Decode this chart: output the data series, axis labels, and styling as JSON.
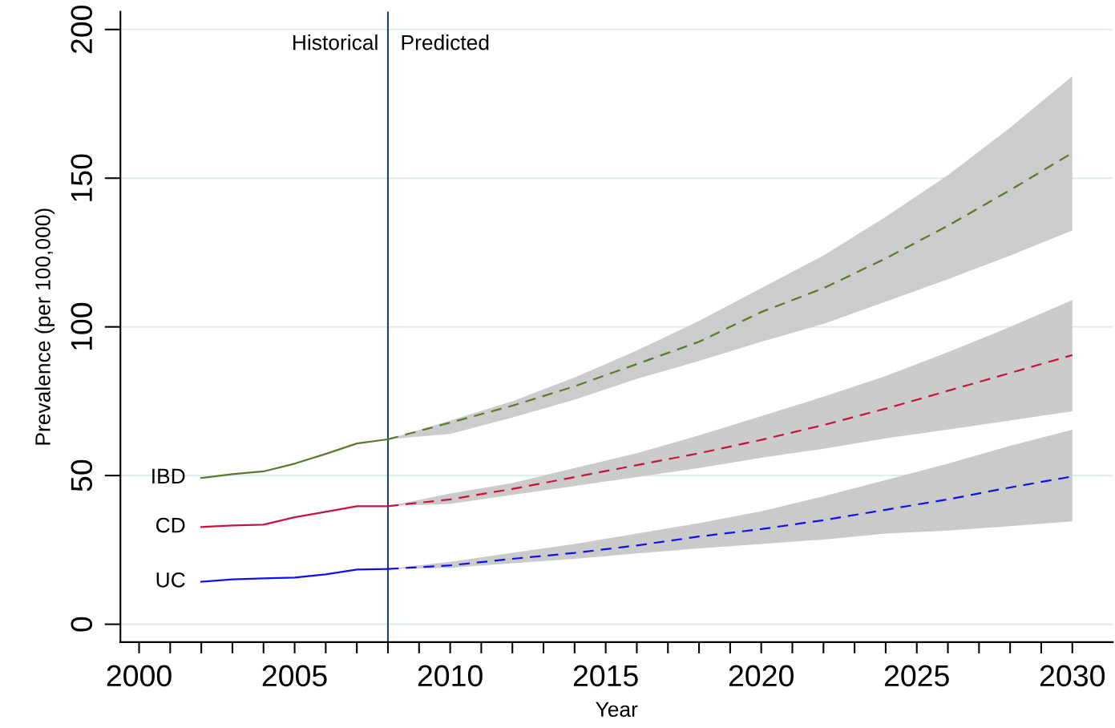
{
  "chart_data": {
    "type": "line",
    "xlabel": "Year",
    "ylabel": "Prevalence (per 100,000)",
    "series": [
      {
        "name": "IBD",
        "color": "#5a7a2b",
        "line_style": "solid",
        "x": [
          2002,
          2003,
          2004,
          2005,
          2006,
          2007,
          2008
        ],
        "values": [
          49.2,
          50.5,
          51.4,
          54,
          57.3,
          60.8,
          62.2
        ]
      },
      {
        "color": "#5a7a2b",
        "line_style": "dashed",
        "x": [
          2008,
          2010,
          2012,
          2014,
          2016,
          2018,
          2020,
          2022,
          2024,
          2026,
          2028,
          2030
        ],
        "values": [
          62.2,
          67.8,
          73.5,
          80,
          87.5,
          95,
          105,
          113,
          123,
          134,
          146,
          158.5
        ],
        "lower": [
          62.2,
          64,
          69.5,
          75.5,
          82.5,
          88.5,
          95,
          101,
          108.5,
          116,
          124,
          132.4
        ],
        "upper": [
          62.2,
          68.5,
          75,
          83,
          92,
          102,
          113,
          124,
          137,
          151,
          167,
          184.3
        ]
      },
      {
        "name": "CD",
        "color": "#c8143c",
        "line_style": "solid",
        "x": [
          2002,
          2003,
          2004,
          2005,
          2006,
          2007,
          2008
        ],
        "values": [
          32.7,
          33.2,
          33.5,
          36,
          37.8,
          39.7,
          39.7
        ]
      },
      {
        "color": "#c8143c",
        "line_style": "dashed",
        "x": [
          2008,
          2010,
          2012,
          2014,
          2016,
          2018,
          2020,
          2022,
          2024,
          2026,
          2028,
          2030
        ],
        "values": [
          39.7,
          42,
          45.5,
          49.5,
          53.5,
          57.5,
          62,
          67,
          72.5,
          78.5,
          84.5,
          90.5
        ],
        "lower": [
          39.7,
          40.5,
          43.5,
          46.5,
          49.5,
          52.5,
          56,
          59,
          62.5,
          65.5,
          68.5,
          71.6
        ],
        "upper": [
          39.7,
          44,
          47.5,
          52.5,
          57.5,
          63.5,
          70,
          76.5,
          83.5,
          91.5,
          100,
          109
        ]
      },
      {
        "name": "UC",
        "color": "#1010ee",
        "line_style": "solid",
        "x": [
          2002,
          2003,
          2004,
          2005,
          2006,
          2007,
          2008
        ],
        "values": [
          14.3,
          15.1,
          15.4,
          15.7,
          16.8,
          18.4,
          18.6
        ]
      },
      {
        "color": "#1010ee",
        "line_style": "dashed",
        "x": [
          2008,
          2010,
          2012,
          2014,
          2016,
          2018,
          2020,
          2022,
          2024,
          2026,
          2028,
          2030
        ],
        "values": [
          18.6,
          19.8,
          22,
          24,
          26.5,
          29.5,
          32,
          35,
          38.5,
          42,
          46,
          49.7
        ],
        "lower": [
          18.6,
          19,
          20.5,
          22,
          23.8,
          25.5,
          27,
          28.5,
          30.5,
          31.5,
          33,
          34.6
        ],
        "upper": [
          18.6,
          21,
          24,
          27,
          30.5,
          34,
          38,
          43,
          48.5,
          54,
          60,
          65.4
        ]
      }
    ],
    "ref_lines": [
      {
        "axis": "x",
        "value": 2008,
        "color": "#1f3f66",
        "line_style": "solid"
      }
    ],
    "annotations": [
      {
        "text": "Historical",
        "x": 2008,
        "y": 195
      },
      {
        "text": "Predicted",
        "x": 2008,
        "y": 195
      }
    ],
    "xlim": [
      1999.4,
      2031.3
    ],
    "ylim": [
      -6,
      206
    ],
    "xticks": [
      2000,
      {
        "value": 2001,
        "label": null
      },
      {
        "value": 2002,
        "label": null
      },
      {
        "value": 2003,
        "label": null
      },
      {
        "value": 2004,
        "label": null
      },
      2005,
      {
        "value": 2006,
        "label": null
      },
      {
        "value": 2007,
        "label": null
      },
      {
        "value": 2008,
        "label": null
      },
      {
        "value": 2009,
        "label": null
      },
      2010,
      {
        "value": 2011,
        "label": null
      },
      {
        "value": 2012,
        "label": null
      },
      {
        "value": 2013,
        "label": null
      },
      {
        "value": 2014,
        "label": null
      },
      2015,
      {
        "value": 2016,
        "label": null
      },
      {
        "value": 2017,
        "label": null
      },
      {
        "value": 2018,
        "label": null
      },
      {
        "value": 2019,
        "label": null
      },
      2020,
      {
        "value": 2021,
        "label": null
      },
      {
        "value": 2022,
        "label": null
      },
      {
        "value": 2023,
        "label": null
      },
      {
        "value": 2024,
        "label": null
      },
      2025,
      {
        "value": 2026,
        "label": null
      },
      {
        "value": 2027,
        "label": null
      },
      {
        "value": 2028,
        "label": null
      },
      {
        "value": 2029,
        "label": null
      },
      2030
    ],
    "yticks": [
      0,
      50,
      100,
      150,
      200
    ],
    "grid": "y",
    "legend": false,
    "marker": "none"
  }
}
